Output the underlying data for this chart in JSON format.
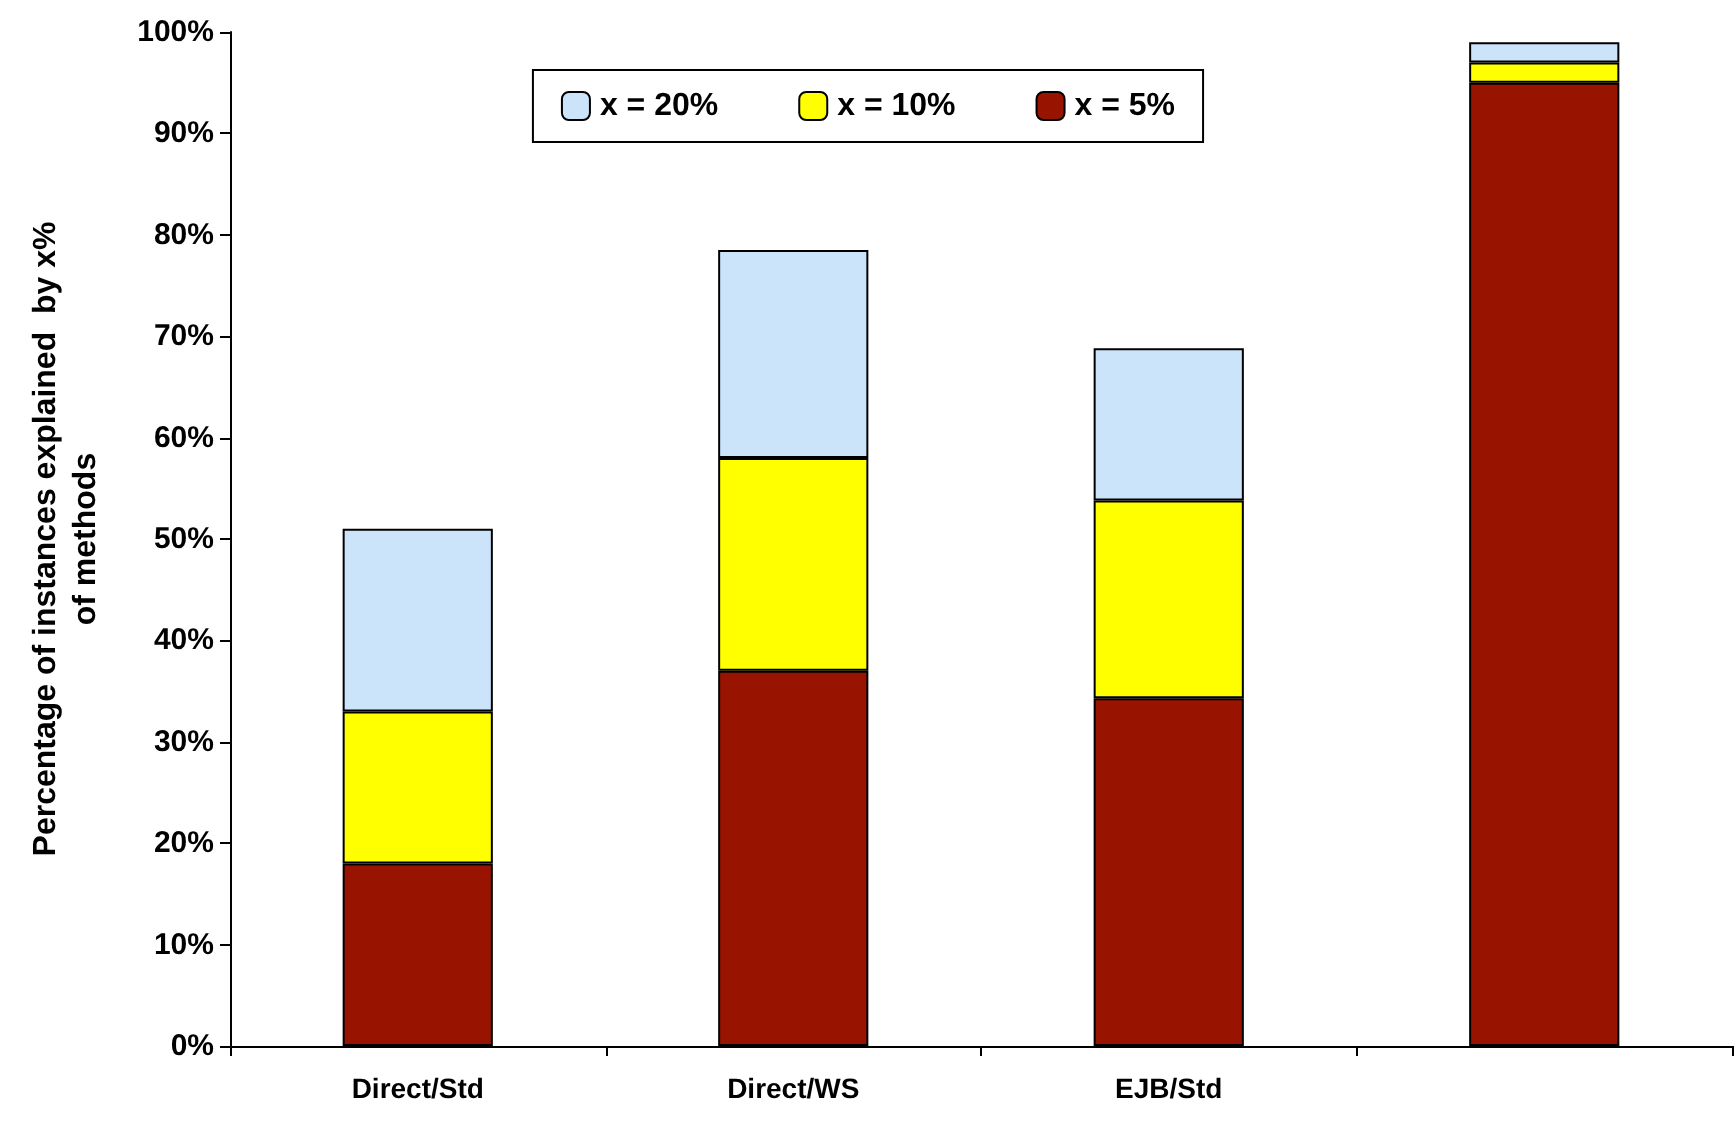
{
  "chart_data": {
    "type": "bar",
    "stacked": true,
    "ylabel": "Percentage of instances explained  by x%\nof methods",
    "categories": [
      "Direct/Std",
      "Direct/WS",
      "EJB/Std",
      null
    ],
    "series": [
      {
        "name": "x = 5%",
        "color": "#991400",
        "values": [
          18,
          37,
          34.3,
          95
        ]
      },
      {
        "name": "x = 10%",
        "color": "#ffff00",
        "values": [
          15,
          21,
          19.5,
          2
        ]
      },
      {
        "name": "x = 20%",
        "color": "#cce4fa",
        "values": [
          18,
          20.5,
          15,
          2
        ]
      }
    ],
    "ylim": [
      0,
      100
    ],
    "yticks": [
      {
        "value": 0,
        "label": "0%"
      },
      {
        "value": 10,
        "label": "10%"
      },
      {
        "value": 20,
        "label": "20%"
      },
      {
        "value": 30,
        "label": "30%"
      },
      {
        "value": 40,
        "label": "40%"
      },
      {
        "value": 50,
        "label": "50%"
      },
      {
        "value": 60,
        "label": "60%"
      },
      {
        "value": 70,
        "label": "70%"
      },
      {
        "value": 80,
        "label": "80%"
      },
      {
        "value": 90,
        "label": "90%"
      },
      {
        "value": 100,
        "label": "100%"
      }
    ],
    "grid": false,
    "legend": "top"
  }
}
